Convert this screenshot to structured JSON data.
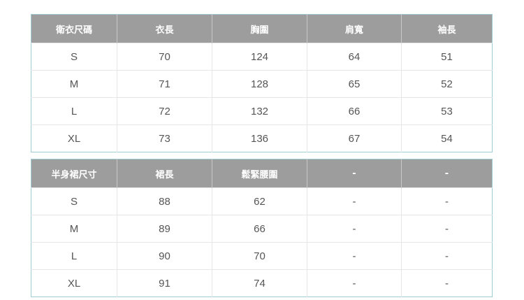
{
  "top": {
    "headers": [
      "衛衣尺碼",
      "衣長",
      "胸圍",
      "肩寬",
      "袖長"
    ],
    "rows": [
      [
        "S",
        "70",
        "124",
        "64",
        "51"
      ],
      [
        "M",
        "71",
        "128",
        "65",
        "52"
      ],
      [
        "L",
        "72",
        "132",
        "66",
        "53"
      ],
      [
        "XL",
        "73",
        "136",
        "67",
        "54"
      ]
    ]
  },
  "bottom": {
    "headers": [
      "半身裙尺寸",
      "裙長",
      "鬆緊腰圍",
      "-",
      "-"
    ],
    "rows": [
      [
        "S",
        "88",
        "62",
        "-",
        "-"
      ],
      [
        "M",
        "89",
        "66",
        "-",
        "-"
      ],
      [
        "L",
        "90",
        "70",
        "-",
        "-"
      ],
      [
        "XL",
        "91",
        "74",
        "-",
        "-"
      ]
    ]
  }
}
